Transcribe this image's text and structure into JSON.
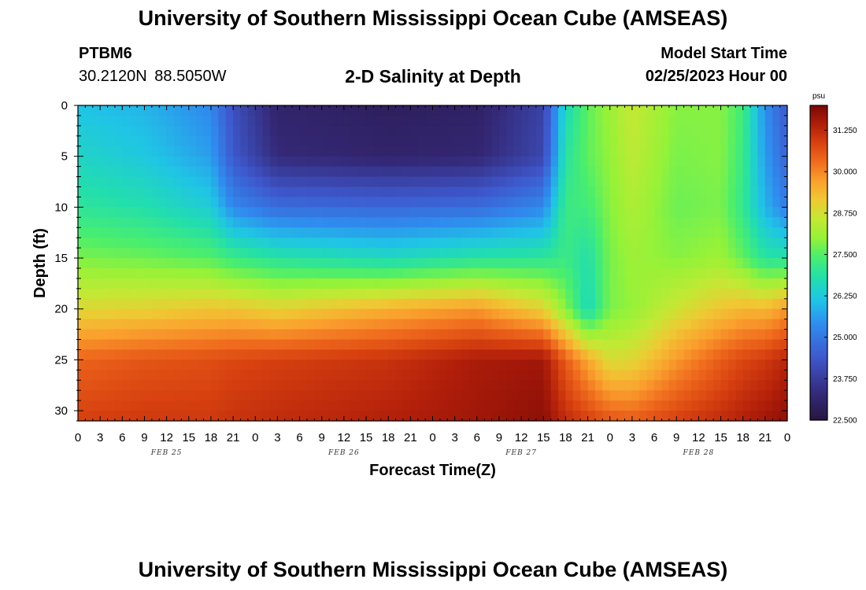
{
  "header": {
    "title": "University of Southern Mississippi Ocean Cube (AMSEAS)",
    "station_id": "PTBM6",
    "station_coords": "30.2120N  88.5050W",
    "model_start_label": "Model Start Time",
    "model_start_value": "02/25/2023 Hour 00"
  },
  "footer": {
    "title": "University of Southern Mississippi Ocean Cube (AMSEAS)"
  },
  "chart_data": {
    "type": "heatmap",
    "title": "2-D Salinity at Depth",
    "xlabel": "Forecast Time(Z)",
    "ylabel": "Depth (ft)",
    "x_hours_range": [
      0,
      96
    ],
    "x_tick_labels": [
      "0",
      "3",
      "6",
      "9",
      "12",
      "15",
      "18",
      "21",
      "0",
      "3",
      "6",
      "9",
      "12",
      "15",
      "18",
      "21",
      "0",
      "3",
      "6",
      "9",
      "12",
      "15",
      "18",
      "21",
      "0",
      "3",
      "6",
      "9",
      "12",
      "15",
      "18",
      "21",
      "0"
    ],
    "date_labels": [
      {
        "label": "FEB 25",
        "hour": 12
      },
      {
        "label": "FEB 26",
        "hour": 36
      },
      {
        "label": "FEB 27",
        "hour": 60
      },
      {
        "label": "FEB 28",
        "hour": 84
      }
    ],
    "ylim": [
      0,
      31
    ],
    "y_ticks": [
      0,
      5,
      10,
      15,
      20,
      25,
      30
    ],
    "y_reversed": true,
    "colorbar": {
      "unit": "psu",
      "range": [
        22.5,
        32.0
      ],
      "tick_values": [
        22.5,
        23.75,
        25.0,
        26.25,
        27.5,
        28.75,
        30.0,
        31.25
      ],
      "tick_labels": [
        "22.500",
        "23.750",
        "25.000",
        "26.250",
        "27.500",
        "28.750",
        "30.000",
        "31.250"
      ]
    },
    "salinity_profiles": [
      {
        "hour": 0,
        "depths": [
          0,
          5,
          10,
          15,
          20,
          25,
          31
        ],
        "values": [
          26.1,
          26.5,
          27.0,
          27.8,
          28.9,
          30.4,
          30.9
        ]
      },
      {
        "hour": 9,
        "depths": [
          0,
          5,
          10,
          15,
          20,
          25,
          31
        ],
        "values": [
          25.9,
          26.2,
          26.8,
          27.7,
          29.0,
          30.6,
          31.0
        ]
      },
      {
        "hour": 18,
        "depths": [
          0,
          5,
          10,
          15,
          20,
          25,
          31
        ],
        "values": [
          25.3,
          25.6,
          26.3,
          27.5,
          29.2,
          30.7,
          31.0
        ]
      },
      {
        "hour": 21,
        "depths": [
          0,
          5,
          10,
          15,
          20,
          25,
          31
        ],
        "values": [
          24.2,
          24.4,
          25.3,
          27.2,
          29.2,
          30.8,
          31.1
        ]
      },
      {
        "hour": 27,
        "depths": [
          0,
          5,
          10,
          15,
          20,
          25,
          31
        ],
        "values": [
          23.1,
          23.3,
          24.8,
          26.9,
          29.0,
          30.9,
          31.2
        ]
      },
      {
        "hour": 42,
        "depths": [
          0,
          5,
          10,
          15,
          20,
          25,
          31
        ],
        "values": [
          22.9,
          23.1,
          24.7,
          26.6,
          29.5,
          31.1,
          31.4
        ]
      },
      {
        "hour": 54,
        "depths": [
          0,
          5,
          10,
          15,
          20,
          25,
          31
        ],
        "values": [
          23.0,
          23.2,
          24.8,
          26.9,
          29.8,
          31.5,
          31.6
        ]
      },
      {
        "hour": 63,
        "depths": [
          0,
          5,
          10,
          15,
          20,
          25,
          31
        ],
        "values": [
          23.9,
          24.0,
          25.3,
          27.0,
          29.0,
          31.6,
          31.8
        ]
      },
      {
        "hour": 66,
        "depths": [
          0,
          5,
          10,
          15,
          20,
          25,
          31
        ],
        "values": [
          26.6,
          26.9,
          27.2,
          27.2,
          27.9,
          30.5,
          31.2
        ]
      },
      {
        "hour": 69,
        "depths": [
          0,
          5,
          10,
          15,
          20,
          25,
          31
        ],
        "values": [
          27.6,
          27.6,
          27.3,
          26.8,
          26.6,
          29.6,
          30.9
        ]
      },
      {
        "hour": 72,
        "depths": [
          0,
          5,
          10,
          15,
          20,
          25,
          31
        ],
        "values": [
          28.1,
          28.0,
          27.9,
          27.8,
          27.8,
          28.8,
          30.6
        ]
      },
      {
        "hour": 75,
        "depths": [
          0,
          5,
          10,
          15,
          20,
          25,
          31
        ],
        "values": [
          28.6,
          28.5,
          28.3,
          28.1,
          28.0,
          28.9,
          30.5
        ]
      },
      {
        "hour": 81,
        "depths": [
          0,
          5,
          10,
          15,
          20,
          25,
          31
        ],
        "values": [
          27.9,
          27.8,
          27.7,
          27.9,
          28.7,
          29.8,
          30.9
        ]
      },
      {
        "hour": 87,
        "depths": [
          0,
          5,
          10,
          15,
          20,
          25,
          31
        ],
        "values": [
          27.9,
          27.9,
          27.8,
          28.1,
          29.2,
          30.5,
          31.2
        ]
      },
      {
        "hour": 90,
        "depths": [
          0,
          5,
          10,
          15,
          20,
          25,
          31
        ],
        "values": [
          27.3,
          27.2,
          27.1,
          27.6,
          29.4,
          30.8,
          31.4
        ]
      },
      {
        "hour": 93,
        "depths": [
          0,
          5,
          10,
          15,
          20,
          25,
          31
        ],
        "values": [
          25.4,
          25.6,
          25.9,
          26.9,
          29.4,
          31.0,
          31.6
        ]
      },
      {
        "hour": 96,
        "depths": [
          0,
          5,
          10,
          15,
          20,
          25,
          31
        ],
        "values": [
          24.4,
          24.6,
          25.1,
          26.9,
          29.8,
          31.3,
          31.8
        ]
      }
    ]
  }
}
